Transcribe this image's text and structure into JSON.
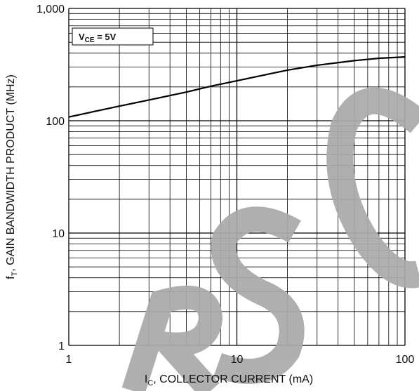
{
  "chart_data": {
    "type": "line",
    "x_label": {
      "main": "I",
      "sub": "C",
      "rest": ", COLLECTOR CURRENT (mA)"
    },
    "y_label": {
      "main": "f",
      "sub": "T",
      "rest": ", GAIN BANDWIDTH PRODUCT (MHz)"
    },
    "annotation": {
      "main": "V",
      "sub": "CE",
      "rest": " = 5V"
    },
    "series": [
      {
        "color": "#000000",
        "x": [
          1,
          2,
          3,
          5,
          7,
          10,
          15,
          20,
          30,
          50,
          70,
          100
        ],
        "values": [
          108,
          135,
          153,
          180,
          203,
          227,
          258,
          282,
          312,
          343,
          360,
          370
        ]
      }
    ],
    "xscale": "log",
    "yscale": "log",
    "xlim": [
      1,
      100
    ],
    "ylim": [
      1,
      1000
    ],
    "xticks": [
      1,
      10,
      100
    ],
    "yticks": [
      1,
      10,
      100,
      {
        "value": 1000,
        "label": "1,000"
      }
    ],
    "grid": true
  }
}
